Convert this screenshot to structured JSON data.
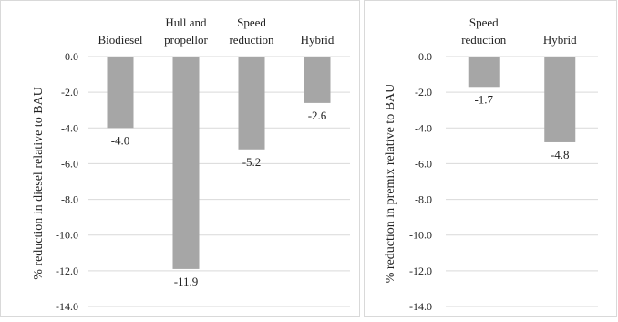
{
  "chart_data": [
    {
      "type": "bar",
      "categories": [
        "Biodiesel",
        "Hull and propellor",
        "Speed reduction",
        "Hybrid"
      ],
      "category_lines": [
        [
          "Biodiesel"
        ],
        [
          "Hull and",
          "propellor"
        ],
        [
          "Speed",
          "reduction"
        ],
        [
          "Hybrid"
        ]
      ],
      "values": [
        -4.0,
        -11.9,
        -5.2,
        -2.6
      ],
      "data_labels": [
        "-4.0",
        "-11.9",
        "-5.2",
        "-2.6"
      ],
      "ylabel": "% reduction in diesel relative to BAU",
      "ylim": [
        -14.0,
        0.0
      ],
      "yticks": [
        0.0,
        -2.0,
        -4.0,
        -6.0,
        -8.0,
        -10.0,
        -12.0,
        -14.0
      ],
      "ytick_labels": [
        "0.0",
        "-2.0",
        "-4.0",
        "-6.0",
        "-8.0",
        "-10.0",
        "-12.0",
        "-14.0"
      ],
      "grid": true,
      "legend": "none",
      "bar_color": "#a6a6a6",
      "grid_color": "#d9d9d9"
    },
    {
      "type": "bar",
      "categories": [
        "Speed reduction",
        "Hybrid"
      ],
      "category_lines": [
        [
          "Speed",
          "reduction"
        ],
        [
          "Hybrid"
        ]
      ],
      "values": [
        -1.7,
        -4.8
      ],
      "data_labels": [
        "-1.7",
        "-4.8"
      ],
      "ylabel": "% reduction in premix relative to BAU",
      "ylim": [
        -14.0,
        0.0
      ],
      "yticks": [
        0.0,
        -2.0,
        -4.0,
        -6.0,
        -8.0,
        -10.0,
        -12.0,
        -14.0
      ],
      "ytick_labels": [
        "0.0",
        "-2.0",
        "-4.0",
        "-6.0",
        "-8.0",
        "-10.0",
        "-12.0",
        "-14.0"
      ],
      "grid": true,
      "legend": "none",
      "bar_color": "#a6a6a6",
      "grid_color": "#d9d9d9"
    }
  ]
}
